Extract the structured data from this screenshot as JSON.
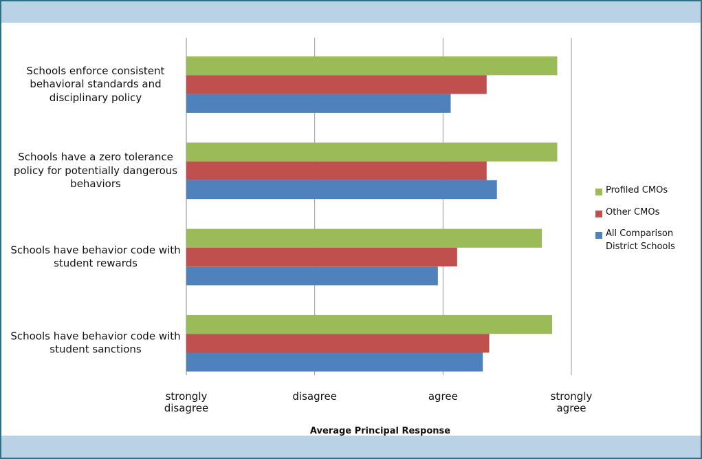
{
  "chart_data": {
    "type": "hbar",
    "x_label": "Average Principal Response",
    "categories": [
      "Schools enforce consistent behavioral standards and disciplinary policy",
      "Schools have a zero tolerance policy for potentially dangerous behaviors",
      "Schools have behavior code with student rewards",
      "Schools have behavior code with student sanctions"
    ],
    "series": [
      {
        "name": "Profiled CMOs",
        "color": "#9bbb59",
        "values": [
          3.89,
          3.89,
          3.77,
          3.85
        ]
      },
      {
        "name": "Other CMOs",
        "color": "#c0504d",
        "values": [
          3.34,
          3.34,
          3.11,
          3.36
        ]
      },
      {
        "name": "All Comparison District Schools",
        "color": "#4f81bd",
        "values": [
          3.06,
          3.42,
          2.96,
          3.31
        ]
      }
    ],
    "xlim": [
      1,
      4
    ],
    "xticks": [
      {
        "value": 1,
        "label": "strongly disagree"
      },
      {
        "value": 2,
        "label": "disagree"
      },
      {
        "value": 3,
        "label": "agree"
      },
      {
        "value": 4,
        "label": "strongly agree"
      }
    ],
    "grid": true,
    "legend": "right"
  }
}
